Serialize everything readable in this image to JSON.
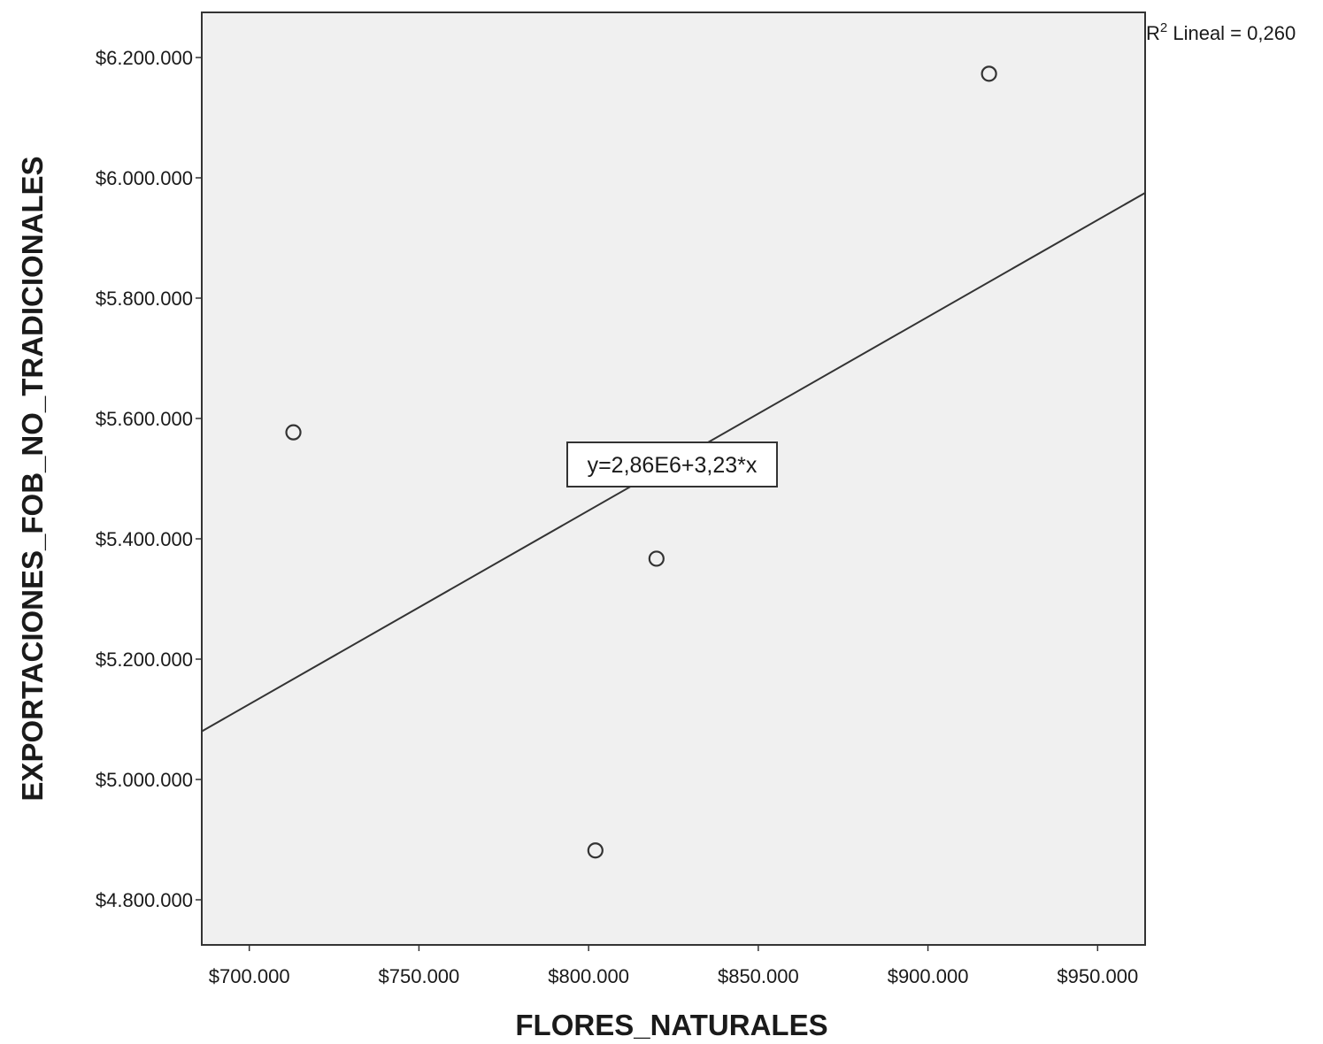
{
  "chart_data": {
    "type": "scatter",
    "xlabel": "FLORES_NATURALES",
    "ylabel": "EXPORTACIONES_FOB_NO_TRADICIONALES",
    "xlim": [
      686000,
      964000
    ],
    "ylim": [
      4725000,
      6275000
    ],
    "x_ticks": [
      700000,
      750000,
      800000,
      850000,
      900000,
      950000
    ],
    "x_tick_labels": [
      "$700.000",
      "$750.000",
      "$800.000",
      "$850.000",
      "$900.000",
      "$950.000"
    ],
    "y_ticks": [
      4800000,
      5000000,
      5200000,
      5400000,
      5600000,
      5800000,
      6000000,
      6200000
    ],
    "y_tick_labels": [
      "$4.800.000",
      "$5.000.000",
      "$5.200.000",
      "$5.400.000",
      "$5.600.000",
      "$5.800.000",
      "$6.000.000",
      "$6.200.000"
    ],
    "points": [
      {
        "x": 713000,
        "y": 5577000
      },
      {
        "x": 802000,
        "y": 4882000
      },
      {
        "x": 820000,
        "y": 5367000
      },
      {
        "x": 918000,
        "y": 6173000
      }
    ],
    "fit_line": {
      "x": [
        686000,
        964000
      ],
      "y": [
        5080000,
        5975000
      ]
    },
    "equation_label": "y=2,86E6+3,23*x",
    "r2_label_prefix": "R",
    "r2_label_sup": "2",
    "r2_label_suffix": " Lineal = 0,260",
    "grid": false,
    "plot_background": "#f0f0f0",
    "marker_color": "#333333"
  }
}
